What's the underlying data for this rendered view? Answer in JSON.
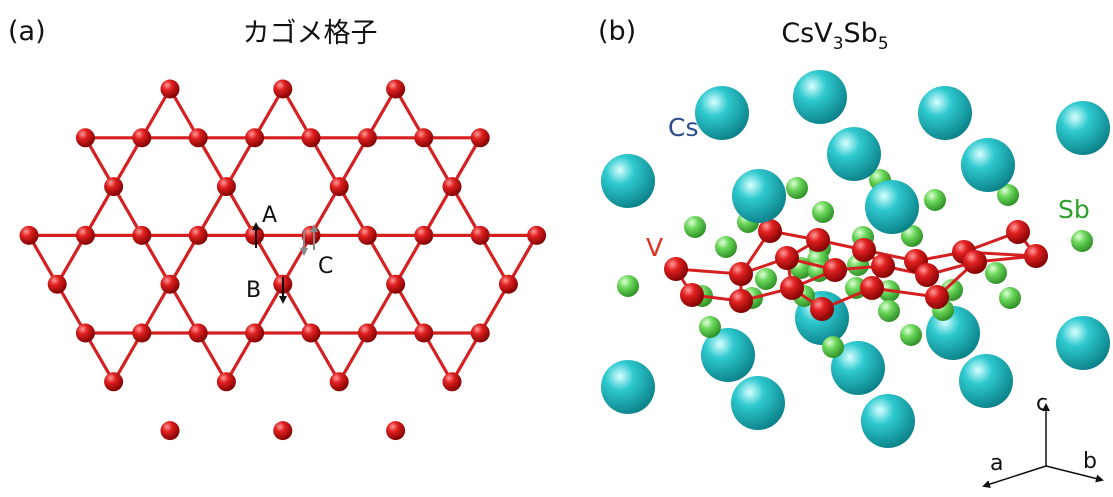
{
  "panel_a": {
    "label": "(a)",
    "title": "カゴメ格子",
    "site_labels": {
      "a": "A",
      "b": "B",
      "c": "C"
    },
    "atom_color": "#d42020",
    "bond_color": "#d42020"
  },
  "panel_b": {
    "label": "(b)",
    "formula": {
      "p1": "CsV",
      "s1": "3",
      "p2": "Sb",
      "s2": "5"
    },
    "atoms": {
      "cs": {
        "label": "Cs",
        "label_color": "#2a4a8a",
        "color": "#2ec9cf"
      },
      "v": {
        "label": "V",
        "label_color": "#e0301e",
        "color": "#cc1010"
      },
      "sb": {
        "label": "Sb",
        "label_color": "#2ea02e",
        "color": "#6ad65a"
      }
    },
    "axes": {
      "a": "a",
      "b": "b",
      "c": "c"
    }
  }
}
